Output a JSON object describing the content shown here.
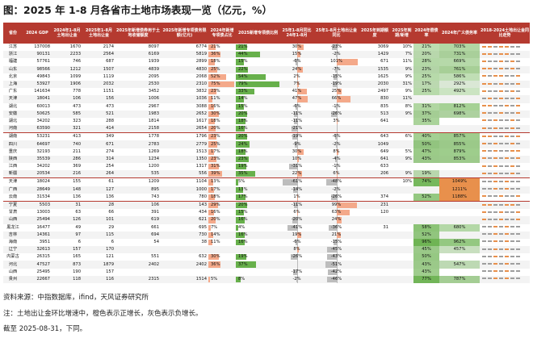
{
  "title": "图：2025 年 1-8 月各省市土地市场表现一览（亿元，%）",
  "headers": [
    "省份",
    "2024\nGDP",
    "2024年1-8月\n土地出让金",
    "2025年1-8月\n土地出让金",
    "2025年新增债券用于土地收储额度",
    "2025年新增专项债务限额(亿元)",
    "2024年新增专项债占比",
    "2025新增专项债比例",
    "25年1-8月同比24年1-8月",
    "25年1-8月土地出让金同比",
    "2025年到期额度",
    "2025年到期/新增",
    "2024年偿债率",
    "2024年广义债务率",
    "2018-2024土地出让金同比走势"
  ],
  "colors": {
    "header_bg": "#b53a30",
    "orange": "#f4a98a",
    "gray": "#bdbdbd",
    "green": "#67b04b",
    "spark_pos": "#e8904c",
    "spark_neg": "#9e9e9e"
  },
  "rows": [
    {
      "p": "江苏",
      "gdp": "137008",
      "s24": "1670",
      "s25": "2174",
      "cu": "8097",
      "zx": "6774",
      "a": "21%",
      "b": "21%",
      "c": "30%",
      "d": "-23%",
      "due": "3069",
      "due_pct": "10%",
      "ch": "21%",
      "gy": "703%",
      "sp": "++-++--"
    },
    {
      "p": "浙江",
      "gdp": "90131",
      "s24": "2233",
      "s25": "2564",
      "cu": "6169",
      "zx": "5819",
      "a": "36%",
      "b": "44%",
      "c": "15%",
      "d": "-2%",
      "due": "1429",
      "due_pct": "7%",
      "ch": "20%",
      "gy": "731%",
      "sp": "++-++--"
    },
    {
      "p": "福建",
      "gdp": "57761",
      "s24": "746",
      "s25": "687",
      "cu": "1939",
      "zx": "2899",
      "a": "18%",
      "b": "15%",
      "c": "-6%",
      "d": "101%",
      "due": "671",
      "due_pct": "11%",
      "ch": "28%",
      "gy": "669%",
      "sp": "+--+-+-"
    },
    {
      "p": "山东",
      "gdp": "98566",
      "s24": "1212",
      "s25": "1507",
      "cu": "4839",
      "zx": "4830",
      "a": "25%",
      "b": "22%",
      "c": "24%",
      "d": "-7%",
      "due": "1535",
      "due_pct": "9%",
      "ch": "23%",
      "gy": "761%",
      "sp": "++-+-+-"
    },
    {
      "p": "北京",
      "gdp": "49843",
      "s24": "1099",
      "s25": "1119",
      "cu": "2095",
      "zx": "2068",
      "a": "52%",
      "b": "54%",
      "c": "2%",
      "d": "-15%",
      "due": "1625",
      "due_pct": "9%",
      "ch": "25%",
      "gy": "586%",
      "sp": "+-++--+"
    },
    {
      "p": "上海",
      "gdp": "53927",
      "s24": "1906",
      "s25": "2032",
      "cu": "2530",
      "zx": "2310",
      "a": "75%",
      "b": "79%",
      "c": "7%",
      "d": "-19%",
      "due": "2030",
      "due_pct": "31%",
      "ch": "17%",
      "gy": "292%",
      "sp": "++-+--+"
    },
    {
      "p": "广东",
      "gdp": "141634",
      "s24": "778",
      "s25": "1151",
      "cu": "3452",
      "zx": "3832",
      "a": "23%",
      "b": "33%",
      "c": "41%",
      "d": "25%",
      "due": "2497",
      "due_pct": "9%",
      "ch": "25%",
      "gy": "492%",
      "sp": "+--+-+-"
    },
    {
      "p": "天津",
      "gdp": "18041",
      "s24": "106",
      "s25": "156",
      "cu": "1006",
      "zx": "1036",
      "a": "11%",
      "b": "14%",
      "c": "47%",
      "d": "66%",
      "due": "830",
      "due_pct": "11%",
      "ch": "",
      "gy": "",
      "sp": "-+-+--+"
    },
    {
      "p": "湖北",
      "gdp": "60013",
      "s24": "473",
      "s25": "473",
      "cu": "2967",
      "zx": "3088",
      "a": "16%",
      "b": "15%",
      "c": "-6%",
      "d": "-1%",
      "due": "835",
      "due_pct": "8%",
      "ch": "31%",
      "gy": "812%",
      "sp": "++--+-+"
    },
    {
      "p": "安徽",
      "gdp": "50625",
      "s24": "585",
      "s25": "521",
      "cu": "1983",
      "zx": "2652",
      "a": "30%",
      "b": "20%",
      "c": "-11%",
      "d": "-26%",
      "due": "513",
      "due_pct": "9%",
      "ch": "37%",
      "gy": "698%",
      "sp": "+--+--+"
    },
    {
      "p": "湖北",
      "gdp": "34202",
      "s24": "323",
      "s25": "288",
      "cu": "1814",
      "zx": "1617",
      "a": "18%",
      "b": "18%",
      "c": "-11%",
      "d": "3%",
      "due": "641",
      "due_pct": "",
      "ch": "35%",
      "gy": "",
      "sp": "+-+--+-"
    },
    {
      "p": "河南",
      "gdp": "63590",
      "s24": "321",
      "s25": "414",
      "cu": "2158",
      "zx": "2654",
      "a": "20%",
      "b": "16%",
      "c": "-21%",
      "d": "",
      "due": "",
      "due_pct": "",
      "ch": "",
      "gy": "",
      "sp": "+-+--+-"
    },
    {
      "p": "湖南",
      "gdp": "53231",
      "s24": "413",
      "s25": "349",
      "cu": "1778",
      "zx": "1796",
      "a": "23%",
      "b": "20%",
      "c": "-19%",
      "d": "-6%",
      "due": "643",
      "due_pct": "6%",
      "ch": "40%",
      "gy": "857%",
      "sp": "++--+-+",
      "gs": true
    },
    {
      "p": "四川",
      "gdp": "64697",
      "s24": "740",
      "s25": "671",
      "cu": "2783",
      "zx": "2779",
      "a": "25%",
      "b": "24%",
      "c": "-9%",
      "d": "-2%",
      "due": "1049",
      "due_pct": "",
      "ch": "50%",
      "gy": "855%",
      "sp": "+-+--+-"
    },
    {
      "p": "重庆",
      "gdp": "32193",
      "s24": "211",
      "s25": "274",
      "cu": "1269",
      "zx": "1513",
      "a": "17%",
      "b": "18%",
      "c": "30%",
      "d": "8%",
      "due": "649",
      "due_pct": "5%",
      "ch": "47%",
      "gy": "879%",
      "sp": "+-+--++"
    },
    {
      "p": "陕西",
      "gdp": "35539",
      "s24": "286",
      "s25": "314",
      "cu": "1234",
      "zx": "1350",
      "a": "23%",
      "b": "23%",
      "c": "10%",
      "d": "-4%",
      "due": "641",
      "due_pct": "9%",
      "ch": "43%",
      "gy": "853%",
      "sp": "+-+-+-+"
    },
    {
      "p": "江西",
      "gdp": "34202",
      "s24": "369",
      "s25": "254",
      "cu": "1200",
      "zx": "1317",
      "a": "31%",
      "b": "19%",
      "c": "-31%",
      "d": "-1%",
      "due": "633",
      "due_pct": "",
      "ch": "",
      "gy": "",
      "sp": "+-+--+-"
    },
    {
      "p": "新疆",
      "gdp": "20534",
      "s24": "216",
      "s25": "264",
      "cu": "535",
      "zx": "556",
      "a": "39%",
      "b": "35%",
      "c": "22%",
      "d": "6%",
      "due": "206",
      "due_pct": "9%",
      "ch": "19%",
      "gy": "",
      "sp": "+-+--+-"
    },
    {
      "p": "天津",
      "gdp": "18024",
      "s24": "155",
      "s25": "61",
      "cu": "1209",
      "zx": "1104",
      "a": "13%",
      "b": "5%",
      "c": "-61%",
      "d": "-48%",
      "due": "",
      "due_pct": "10%",
      "ch": "74%",
      "gy": "1049%",
      "sp": "--+-+--",
      "gs": true
    },
    {
      "p": "广西",
      "gdp": "28649",
      "s24": "148",
      "s25": "127",
      "cu": "895",
      "zx": "1000",
      "a": "17%",
      "b": "13%",
      "c": "-14%",
      "d": "-2%",
      "due": "",
      "due_pct": "",
      "ch": "",
      "gy": "1211%",
      "sp": "--+-+--"
    },
    {
      "p": "云南",
      "gdp": "31534",
      "s24": "136",
      "s25": "136",
      "cu": "743",
      "zx": "780",
      "a": "18%",
      "b": "17%",
      "c": "1%",
      "d": "-26%",
      "due": "374",
      "due_pct": "",
      "ch": "52%",
      "gy": "1188%",
      "sp": "+--+--+"
    },
    {
      "p": "宁夏",
      "gdp": "5503",
      "s24": "31",
      "s25": "28",
      "cu": "106",
      "zx": "143",
      "a": "29%",
      "b": "20%",
      "c": "-11%",
      "d": "99%",
      "due": "231",
      "due_pct": "",
      "ch": "",
      "gy": "",
      "sp": "++--++-",
      "gs": true
    },
    {
      "p": "甘肃",
      "gdp": "13003",
      "s24": "63",
      "s25": "66",
      "cu": "391",
      "zx": "434",
      "a": "16%",
      "b": "15%",
      "c": "6%",
      "d": "63%",
      "due": "120",
      "due_pct": "",
      "ch": "",
      "gy": "",
      "sp": "+--+--+"
    },
    {
      "p": "山西",
      "gdp": "25494",
      "s24": "126",
      "s25": "101",
      "cu": "619",
      "zx": "621",
      "a": "20%",
      "b": "16%",
      "c": "-20%",
      "d": "24%",
      "due": "",
      "due_pct": "",
      "ch": "",
      "gy": "",
      "sp": "+--+--+"
    },
    {
      "p": "黑龙江",
      "gdp": "16477",
      "s24": "49",
      "s25": "29",
      "cu": "661",
      "zx": "695",
      "a": "7%",
      "b": "4%",
      "c": "-41%",
      "d": "-36%",
      "due": "31",
      "due_pct": "",
      "ch": "58%",
      "gy": "680%",
      "sp": "--+-+--"
    },
    {
      "p": "吉林",
      "gdp": "14361",
      "s24": "97",
      "s25": "115",
      "cu": "694",
      "zx": "730",
      "a": "14%",
      "b": "16%",
      "c": "19%",
      "d": "21%",
      "due": "",
      "due_pct": "",
      "ch": "52%",
      "gy": "",
      "sp": "--+-+--"
    },
    {
      "p": "海南",
      "gdp": "3951",
      "s24": "6",
      "s25": "6",
      "cu": "54",
      "zx": "38",
      "a": "11%",
      "b": "16%",
      "c": "-6%",
      "d": "-15%",
      "due": "",
      "due_pct": "",
      "ch": "96%",
      "gy": "962%",
      "sp": "--+-+--"
    },
    {
      "p": "辽宁",
      "gdp": "32613",
      "s24": "157",
      "s25": "170",
      "cu": "",
      "zx": "",
      "a": "",
      "b": "",
      "c": "8%",
      "d": "-45%",
      "due": "",
      "due_pct": "",
      "ch": "45%",
      "gy": "457%",
      "sp": "--+-+--"
    },
    {
      "p": "内蒙古",
      "gdp": "26315",
      "s24": "165",
      "s25": "121",
      "cu": "551",
      "zx": "632",
      "a": "30%",
      "b": "19%",
      "c": "-26%",
      "d": "-43%",
      "due": "",
      "due_pct": "",
      "ch": "50%",
      "gy": "",
      "sp": "--+-+--"
    },
    {
      "p": "河北",
      "gdp": "47527",
      "s24": "873",
      "s25": "1879",
      "cu": "2402",
      "zx": "2402",
      "a": "36%",
      "b": "37%",
      "c": "",
      "d": "-51%",
      "due": "",
      "due_pct": "",
      "ch": "43%",
      "gy": "547%",
      "sp": "--+-+--"
    },
    {
      "p": "山西",
      "gdp": "25495",
      "s24": "190",
      "s25": "157",
      "cu": "",
      "zx": "",
      "a": "",
      "b": "",
      "c": "-17%",
      "d": "-42%",
      "due": "",
      "due_pct": "",
      "ch": "43%",
      "gy": "",
      "sp": "--+-+--"
    },
    {
      "p": "贵州",
      "gdp": "22667",
      "s24": "118",
      "s25": "116",
      "cu": "2315",
      "zx": "1514",
      "a": "5%",
      "b": "8%",
      "c": "-2%",
      "d": "-46%",
      "due": "",
      "due_pct": "",
      "ch": "77%",
      "gy": "787%",
      "sp": "--+-+--"
    }
  ],
  "notes": {
    "source": "资料来源：中指数据库，ifind，天风证券研究所",
    "note": "注：土地出让金环比增速中，橙色表示正增长，灰色表示负增长。",
    "date": "截至 2025-08-31，下同。"
  }
}
